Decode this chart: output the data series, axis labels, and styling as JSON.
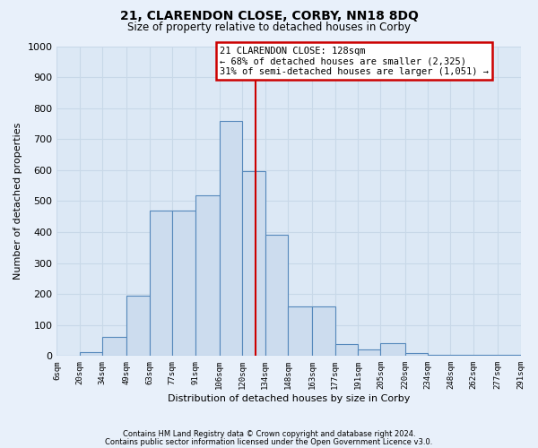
{
  "title": "21, CLARENDON CLOSE, CORBY, NN18 8DQ",
  "subtitle": "Size of property relative to detached houses in Corby",
  "xlabel": "Distribution of detached houses by size in Corby",
  "ylabel": "Number of detached properties",
  "footer_line1": "Contains HM Land Registry data © Crown copyright and database right 2024.",
  "footer_line2": "Contains public sector information licensed under the Open Government Licence v3.0.",
  "bar_color": "#ccdcee",
  "bar_edge_color": "#5588bb",
  "bg_color": "#dce8f5",
  "fig_bg_color": "#e8f0fa",
  "grid_color": "#c8d8e8",
  "vline_x": 128,
  "vline_color": "#cc0000",
  "annotation_title": "21 CLARENDON CLOSE: 128sqm",
  "annotation_line1": "← 68% of detached houses are smaller (2,325)",
  "annotation_line2": "31% of semi-detached houses are larger (1,051) →",
  "annotation_box_facecolor": "#ffffff",
  "annotation_box_edgecolor": "#cc0000",
  "bin_edges": [
    6,
    20,
    34,
    49,
    63,
    77,
    91,
    106,
    120,
    134,
    148,
    163,
    177,
    191,
    205,
    220,
    234,
    248,
    262,
    277,
    291
  ],
  "bin_labels": [
    "6sqm",
    "20sqm",
    "34sqm",
    "49sqm",
    "63sqm",
    "77sqm",
    "91sqm",
    "106sqm",
    "120sqm",
    "134sqm",
    "148sqm",
    "163sqm",
    "177sqm",
    "191sqm",
    "205sqm",
    "220sqm",
    "234sqm",
    "248sqm",
    "262sqm",
    "277sqm",
    "291sqm"
  ],
  "bar_heights": [
    0,
    12,
    63,
    195,
    468,
    468,
    518,
    760,
    597,
    390,
    160,
    160,
    38,
    20,
    42,
    10,
    3,
    3,
    3,
    3
  ],
  "ylim": [
    0,
    1000
  ],
  "yticks": [
    0,
    100,
    200,
    300,
    400,
    500,
    600,
    700,
    800,
    900,
    1000
  ]
}
